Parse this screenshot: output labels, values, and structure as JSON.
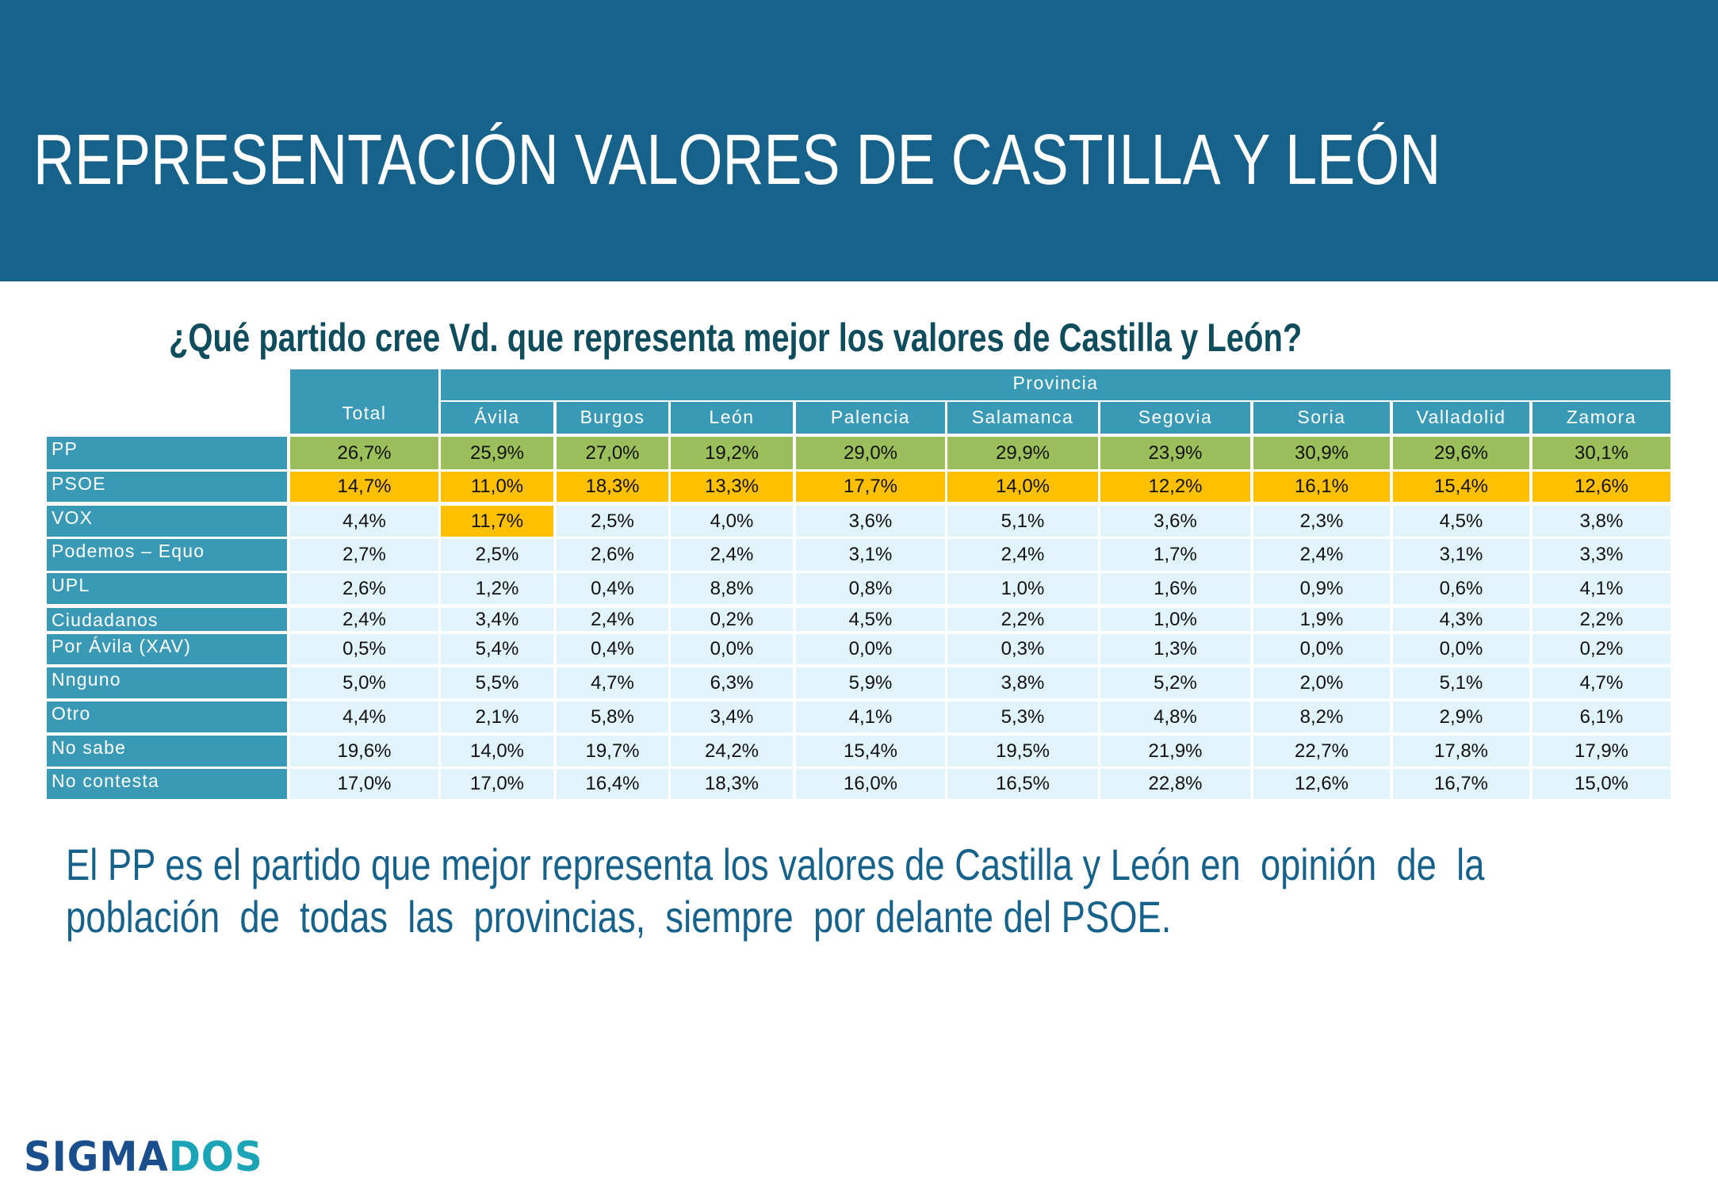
{
  "header": {
    "title": "REPRESENTACIÓN VALORES DE CASTILLA Y LEÓN"
  },
  "question": "¿Qué partido cree Vd. que representa mejor los valores de Castilla y León?",
  "colors": {
    "header_band": "#17628A",
    "table_header": "#3A9AB5",
    "highlight_first": "#9BBF5A",
    "highlight_second": "#FFC000",
    "cell_default": "#E1F4FB",
    "summary_text": "#17628A",
    "question_text": "#0F4D5C"
  },
  "table": {
    "group_header": "Provincia",
    "total_header": "Total",
    "columns": [
      "Total",
      "Ávila",
      "Burgos",
      "León",
      "Palencia",
      "Salamanca",
      "Segovia",
      "Soria",
      "Valladolid",
      "Zamora"
    ],
    "rows": [
      {
        "label": "PP",
        "values": [
          "26,7%",
          "25,9%",
          "27,0%",
          "19,2%",
          "29,0%",
          "29,9%",
          "23,9%",
          "30,9%",
          "29,6%",
          "30,1%"
        ],
        "highlight": [
          "first",
          "first",
          "first",
          "first",
          "first",
          "first",
          "first",
          "first",
          "first",
          "first"
        ]
      },
      {
        "label": "PSOE",
        "values": [
          "14,7%",
          "11,0%",
          "18,3%",
          "13,3%",
          "17,7%",
          "14,0%",
          "12,2%",
          "16,1%",
          "15,4%",
          "12,6%"
        ],
        "highlight": [
          "second",
          "second",
          "second",
          "second",
          "second",
          "second",
          "second",
          "second",
          "second",
          "second"
        ]
      },
      {
        "label": "VOX",
        "values": [
          "4,4%",
          "11,7%",
          "2,5%",
          "4,0%",
          "3,6%",
          "5,1%",
          "3,6%",
          "2,3%",
          "4,5%",
          "3,8%"
        ],
        "highlight": [
          "",
          "second",
          "",
          "",
          "",
          "",
          "",
          "",
          "",
          ""
        ]
      },
      {
        "label": "Podemos – Equo",
        "values": [
          "2,7%",
          "2,5%",
          "2,6%",
          "2,4%",
          "3,1%",
          "2,4%",
          "1,7%",
          "2,4%",
          "3,1%",
          "3,3%"
        ]
      },
      {
        "label": "UPL",
        "values": [
          "2,6%",
          "1,2%",
          "0,4%",
          "8,8%",
          "0,8%",
          "1,0%",
          "1,6%",
          "0,9%",
          "0,6%",
          "4,1%"
        ]
      },
      {
        "label": "Ciudadanos",
        "values": [
          "2,4%",
          "3,4%",
          "2,4%",
          "0,2%",
          "4,5%",
          "2,2%",
          "1,0%",
          "1,9%",
          "4,3%",
          "2,2%"
        ]
      },
      {
        "label": "Por Ávila (XAV)",
        "values": [
          "0,5%",
          "5,4%",
          "0,4%",
          "0,0%",
          "0,0%",
          "0,3%",
          "1,3%",
          "0,0%",
          "0,0%",
          "0,2%"
        ]
      },
      {
        "label": "Nnguno",
        "values": [
          "5,0%",
          "5,5%",
          "4,7%",
          "6,3%",
          "5,9%",
          "3,8%",
          "5,2%",
          "2,0%",
          "5,1%",
          "4,7%"
        ]
      },
      {
        "label": "Otro",
        "values": [
          "4,4%",
          "2,1%",
          "5,8%",
          "3,4%",
          "4,1%",
          "5,3%",
          "4,8%",
          "8,2%",
          "2,9%",
          "6,1%"
        ]
      },
      {
        "label": "No sabe",
        "values": [
          "19,6%",
          "14,0%",
          "19,7%",
          "24,2%",
          "15,4%",
          "19,5%",
          "21,9%",
          "22,7%",
          "17,8%",
          "17,9%"
        ]
      },
      {
        "label": "No contesta",
        "values": [
          "17,0%",
          "17,0%",
          "16,4%",
          "18,3%",
          "16,0%",
          "16,5%",
          "22,8%",
          "12,6%",
          "16,7%",
          "15,0%"
        ]
      }
    ]
  },
  "summary": {
    "line1": "El PP es el partido que mejor representa los valores de Castilla y León en  opinión  de  la",
    "line2": "población  de  todas  las  provincias,  siempre  por delante del PSOE."
  },
  "logo": {
    "part1": "SIGMA",
    "part2": "DOS"
  }
}
